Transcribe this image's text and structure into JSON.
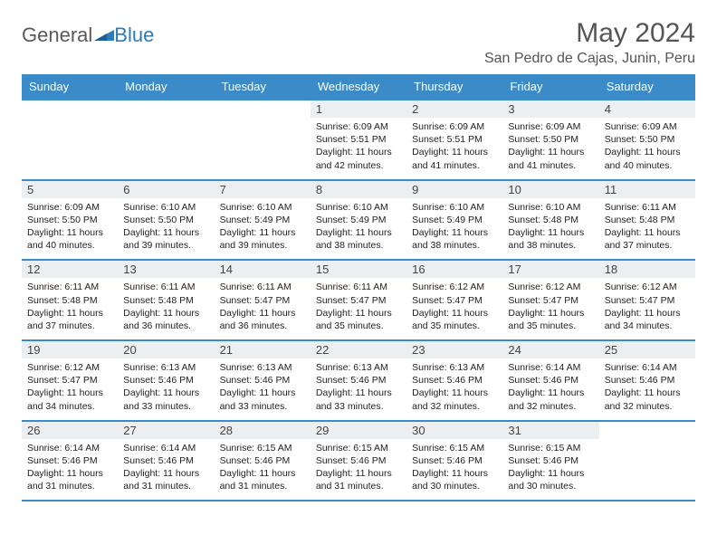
{
  "logo": {
    "text1": "General",
    "text2": "Blue"
  },
  "title": "May 2024",
  "location": "San Pedro de Cajas, Junin, Peru",
  "colors": {
    "header_bg": "#3b8bc9",
    "header_text": "#ffffff",
    "border": "#3b8bc9",
    "daynum_bg": "#eceff1",
    "body_text": "#222222",
    "logo_gray": "#5a5a5a",
    "logo_blue": "#2b7bbf"
  },
  "weekdays": [
    "Sunday",
    "Monday",
    "Tuesday",
    "Wednesday",
    "Thursday",
    "Friday",
    "Saturday"
  ],
  "days": [
    null,
    null,
    null,
    {
      "n": "1",
      "sunrise": "6:09 AM",
      "sunset": "5:51 PM",
      "daylight": "11 hours and 42 minutes."
    },
    {
      "n": "2",
      "sunrise": "6:09 AM",
      "sunset": "5:51 PM",
      "daylight": "11 hours and 41 minutes."
    },
    {
      "n": "3",
      "sunrise": "6:09 AM",
      "sunset": "5:50 PM",
      "daylight": "11 hours and 41 minutes."
    },
    {
      "n": "4",
      "sunrise": "6:09 AM",
      "sunset": "5:50 PM",
      "daylight": "11 hours and 40 minutes."
    },
    {
      "n": "5",
      "sunrise": "6:09 AM",
      "sunset": "5:50 PM",
      "daylight": "11 hours and 40 minutes."
    },
    {
      "n": "6",
      "sunrise": "6:10 AM",
      "sunset": "5:50 PM",
      "daylight": "11 hours and 39 minutes."
    },
    {
      "n": "7",
      "sunrise": "6:10 AM",
      "sunset": "5:49 PM",
      "daylight": "11 hours and 39 minutes."
    },
    {
      "n": "8",
      "sunrise": "6:10 AM",
      "sunset": "5:49 PM",
      "daylight": "11 hours and 38 minutes."
    },
    {
      "n": "9",
      "sunrise": "6:10 AM",
      "sunset": "5:49 PM",
      "daylight": "11 hours and 38 minutes."
    },
    {
      "n": "10",
      "sunrise": "6:10 AM",
      "sunset": "5:48 PM",
      "daylight": "11 hours and 38 minutes."
    },
    {
      "n": "11",
      "sunrise": "6:11 AM",
      "sunset": "5:48 PM",
      "daylight": "11 hours and 37 minutes."
    },
    {
      "n": "12",
      "sunrise": "6:11 AM",
      "sunset": "5:48 PM",
      "daylight": "11 hours and 37 minutes."
    },
    {
      "n": "13",
      "sunrise": "6:11 AM",
      "sunset": "5:48 PM",
      "daylight": "11 hours and 36 minutes."
    },
    {
      "n": "14",
      "sunrise": "6:11 AM",
      "sunset": "5:47 PM",
      "daylight": "11 hours and 36 minutes."
    },
    {
      "n": "15",
      "sunrise": "6:11 AM",
      "sunset": "5:47 PM",
      "daylight": "11 hours and 35 minutes."
    },
    {
      "n": "16",
      "sunrise": "6:12 AM",
      "sunset": "5:47 PM",
      "daylight": "11 hours and 35 minutes."
    },
    {
      "n": "17",
      "sunrise": "6:12 AM",
      "sunset": "5:47 PM",
      "daylight": "11 hours and 35 minutes."
    },
    {
      "n": "18",
      "sunrise": "6:12 AM",
      "sunset": "5:47 PM",
      "daylight": "11 hours and 34 minutes."
    },
    {
      "n": "19",
      "sunrise": "6:12 AM",
      "sunset": "5:47 PM",
      "daylight": "11 hours and 34 minutes."
    },
    {
      "n": "20",
      "sunrise": "6:13 AM",
      "sunset": "5:46 PM",
      "daylight": "11 hours and 33 minutes."
    },
    {
      "n": "21",
      "sunrise": "6:13 AM",
      "sunset": "5:46 PM",
      "daylight": "11 hours and 33 minutes."
    },
    {
      "n": "22",
      "sunrise": "6:13 AM",
      "sunset": "5:46 PM",
      "daylight": "11 hours and 33 minutes."
    },
    {
      "n": "23",
      "sunrise": "6:13 AM",
      "sunset": "5:46 PM",
      "daylight": "11 hours and 32 minutes."
    },
    {
      "n": "24",
      "sunrise": "6:14 AM",
      "sunset": "5:46 PM",
      "daylight": "11 hours and 32 minutes."
    },
    {
      "n": "25",
      "sunrise": "6:14 AM",
      "sunset": "5:46 PM",
      "daylight": "11 hours and 32 minutes."
    },
    {
      "n": "26",
      "sunrise": "6:14 AM",
      "sunset": "5:46 PM",
      "daylight": "11 hours and 31 minutes."
    },
    {
      "n": "27",
      "sunrise": "6:14 AM",
      "sunset": "5:46 PM",
      "daylight": "11 hours and 31 minutes."
    },
    {
      "n": "28",
      "sunrise": "6:15 AM",
      "sunset": "5:46 PM",
      "daylight": "11 hours and 31 minutes."
    },
    {
      "n": "29",
      "sunrise": "6:15 AM",
      "sunset": "5:46 PM",
      "daylight": "11 hours and 31 minutes."
    },
    {
      "n": "30",
      "sunrise": "6:15 AM",
      "sunset": "5:46 PM",
      "daylight": "11 hours and 30 minutes."
    },
    {
      "n": "31",
      "sunrise": "6:15 AM",
      "sunset": "5:46 PM",
      "daylight": "11 hours and 30 minutes."
    },
    null
  ],
  "labels": {
    "sunrise": "Sunrise:",
    "sunset": "Sunset:",
    "daylight": "Daylight:"
  }
}
